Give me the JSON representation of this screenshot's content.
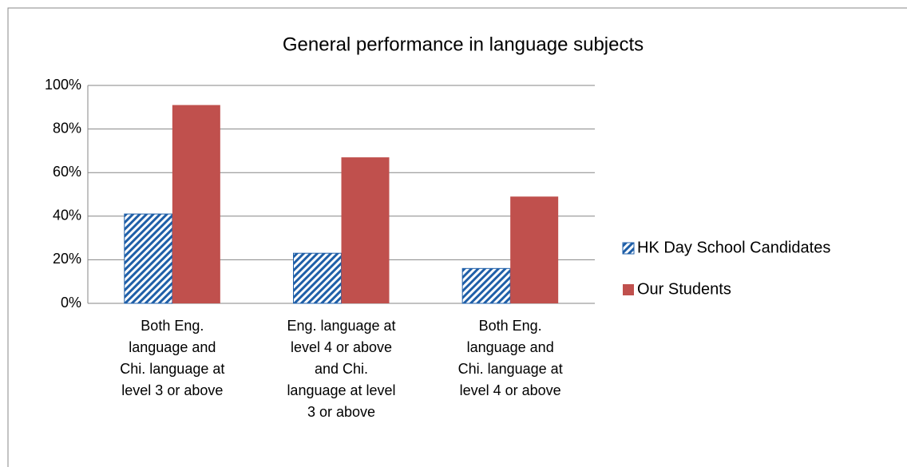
{
  "chart_data": {
    "type": "bar",
    "title": "General performance in language subjects",
    "categories": [
      "Both Eng. language and Chi. language at level 3 or above",
      "Eng. language at level 4 or above and Chi. language at level 3 or above",
      "Both Eng. language and Chi. language at level 4 or above"
    ],
    "series": [
      {
        "name": "HK Day School Candidates",
        "color": "#1f5fa8",
        "values": [
          41,
          23,
          16
        ]
      },
      {
        "name": "Our Students",
        "color": "#c0504d",
        "values": [
          91,
          67,
          49
        ]
      }
    ],
    "ylim": [
      0,
      100
    ],
    "yticks": [
      {
        "value": 0,
        "label": "0%"
      },
      {
        "value": 20,
        "label": "20%"
      },
      {
        "value": 40,
        "label": "40%"
      },
      {
        "value": 60,
        "label": "60%"
      },
      {
        "value": 80,
        "label": "80%"
      },
      {
        "value": 100,
        "label": "100%"
      }
    ],
    "grid": true,
    "legend": "right"
  }
}
